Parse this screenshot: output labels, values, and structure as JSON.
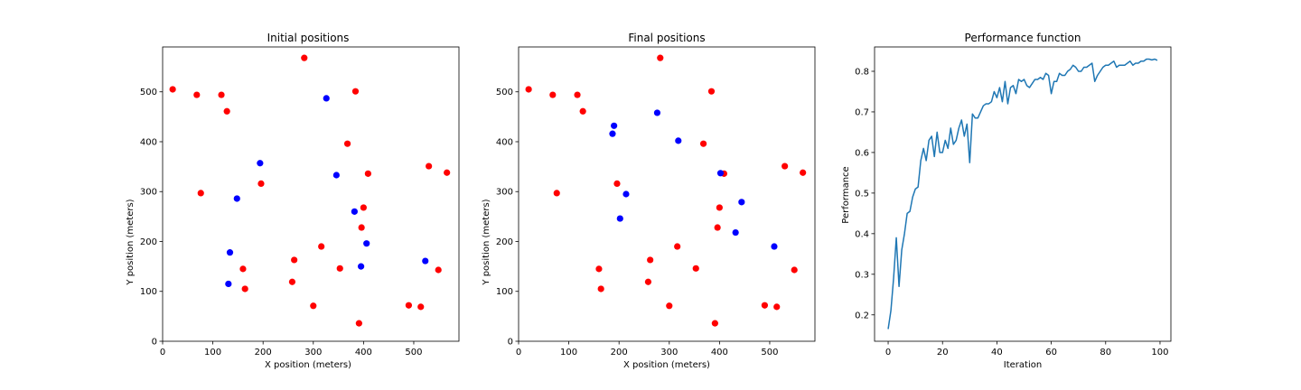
{
  "chart_data": [
    {
      "type": "scatter",
      "title": "Initial positions",
      "xlabel": "X position (meters)",
      "ylabel": "Y position (meters)",
      "xlim": [
        0,
        590
      ],
      "ylim": [
        0,
        590
      ],
      "xticks": [
        0,
        100,
        200,
        300,
        400,
        500
      ],
      "yticks": [
        0,
        100,
        200,
        300,
        400,
        500
      ],
      "series": [
        {
          "color": "#ff0000",
          "points": [
            [
              20,
              505
            ],
            [
              68,
              494
            ],
            [
              117,
              494
            ],
            [
              128,
              461
            ],
            [
              282,
              568
            ],
            [
              384,
              501
            ],
            [
              368,
              396
            ],
            [
              409,
              336
            ],
            [
              530,
              351
            ],
            [
              566,
              338
            ],
            [
              76,
              297
            ],
            [
              196,
              316
            ],
            [
              400,
              268
            ],
            [
              396,
              228
            ],
            [
              316,
              190
            ],
            [
              160,
              145
            ],
            [
              164,
              105
            ],
            [
              262,
              163
            ],
            [
              258,
              119
            ],
            [
              353,
              146
            ],
            [
              300,
              71
            ],
            [
              391,
              36
            ],
            [
              490,
              72
            ],
            [
              514,
              69
            ],
            [
              549,
              143
            ]
          ]
        },
        {
          "color": "#0000ff",
          "points": [
            [
              326,
              487
            ],
            [
              194,
              357
            ],
            [
              346,
              333
            ],
            [
              148,
              286
            ],
            [
              382,
              260
            ],
            [
              406,
              196
            ],
            [
              134,
              178
            ],
            [
              131,
              115
            ],
            [
              395,
              150
            ],
            [
              523,
              161
            ]
          ]
        }
      ]
    },
    {
      "type": "scatter",
      "title": "Final positions",
      "xlabel": "X position (meters)",
      "ylabel": "Y position (meters)",
      "xlim": [
        0,
        590
      ],
      "ylim": [
        0,
        590
      ],
      "xticks": [
        0,
        100,
        200,
        300,
        400,
        500
      ],
      "yticks": [
        0,
        100,
        200,
        300,
        400,
        500
      ],
      "series": [
        {
          "color": "#ff0000",
          "points": [
            [
              20,
              505
            ],
            [
              68,
              494
            ],
            [
              117,
              494
            ],
            [
              128,
              461
            ],
            [
              282,
              568
            ],
            [
              384,
              501
            ],
            [
              368,
              396
            ],
            [
              409,
              336
            ],
            [
              530,
              351
            ],
            [
              566,
              338
            ],
            [
              76,
              297
            ],
            [
              196,
              316
            ],
            [
              400,
              268
            ],
            [
              396,
              228
            ],
            [
              316,
              190
            ],
            [
              160,
              145
            ],
            [
              164,
              105
            ],
            [
              262,
              163
            ],
            [
              258,
              119
            ],
            [
              353,
              146
            ],
            [
              300,
              71
            ],
            [
              391,
              36
            ],
            [
              490,
              72
            ],
            [
              514,
              69
            ],
            [
              549,
              143
            ]
          ]
        },
        {
          "color": "#0000ff",
          "points": [
            [
              190,
              432
            ],
            [
              187,
              416
            ],
            [
              276,
              458
            ],
            [
              318,
              402
            ],
            [
              402,
              337
            ],
            [
              214,
              295
            ],
            [
              202,
              246
            ],
            [
              444,
              279
            ],
            [
              432,
              218
            ],
            [
              509,
              190
            ]
          ]
        }
      ]
    },
    {
      "type": "line",
      "title": "Performance function",
      "xlabel": "Iteration",
      "ylabel": "Performance",
      "xlim": [
        -5,
        104
      ],
      "ylim": [
        0.135,
        0.86
      ],
      "xticks": [
        0,
        20,
        40,
        60,
        80,
        100
      ],
      "yticks": [
        0.2,
        0.3,
        0.4,
        0.5,
        0.6,
        0.7,
        0.8
      ],
      "series": [
        {
          "color": "#1f77b4",
          "x": [
            0,
            1,
            2,
            3,
            4,
            5,
            6,
            7,
            8,
            9,
            10,
            11,
            12,
            13,
            14,
            15,
            16,
            17,
            18,
            19,
            20,
            21,
            22,
            23,
            24,
            25,
            26,
            27,
            28,
            29,
            30,
            31,
            32,
            33,
            34,
            35,
            36,
            37,
            38,
            39,
            40,
            41,
            42,
            43,
            44,
            45,
            46,
            47,
            48,
            49,
            50,
            51,
            52,
            53,
            54,
            55,
            56,
            57,
            58,
            59,
            60,
            61,
            62,
            63,
            64,
            65,
            66,
            67,
            68,
            69,
            70,
            71,
            72,
            73,
            74,
            75,
            76,
            77,
            78,
            79,
            80,
            81,
            82,
            83,
            84,
            85,
            86,
            87,
            88,
            89,
            90,
            91,
            92,
            93,
            94,
            95,
            96,
            97,
            98,
            99
          ],
          "y": [
            0.165,
            0.21,
            0.29,
            0.39,
            0.27,
            0.36,
            0.4,
            0.45,
            0.455,
            0.49,
            0.51,
            0.515,
            0.58,
            0.61,
            0.58,
            0.63,
            0.64,
            0.59,
            0.65,
            0.6,
            0.6,
            0.63,
            0.61,
            0.66,
            0.62,
            0.63,
            0.66,
            0.68,
            0.64,
            0.67,
            0.575,
            0.695,
            0.685,
            0.685,
            0.7,
            0.715,
            0.72,
            0.72,
            0.725,
            0.75,
            0.735,
            0.76,
            0.725,
            0.775,
            0.72,
            0.76,
            0.765,
            0.745,
            0.78,
            0.775,
            0.78,
            0.765,
            0.76,
            0.77,
            0.78,
            0.78,
            0.785,
            0.78,
            0.795,
            0.79,
            0.745,
            0.775,
            0.775,
            0.795,
            0.79,
            0.79,
            0.8,
            0.805,
            0.815,
            0.81,
            0.8,
            0.8,
            0.81,
            0.81,
            0.815,
            0.82,
            0.775,
            0.79,
            0.8,
            0.81,
            0.815,
            0.815,
            0.82,
            0.825,
            0.81,
            0.815,
            0.815,
            0.815,
            0.82,
            0.825,
            0.815,
            0.82,
            0.82,
            0.825,
            0.825,
            0.83,
            0.83,
            0.828,
            0.83,
            0.827
          ]
        }
      ]
    }
  ]
}
